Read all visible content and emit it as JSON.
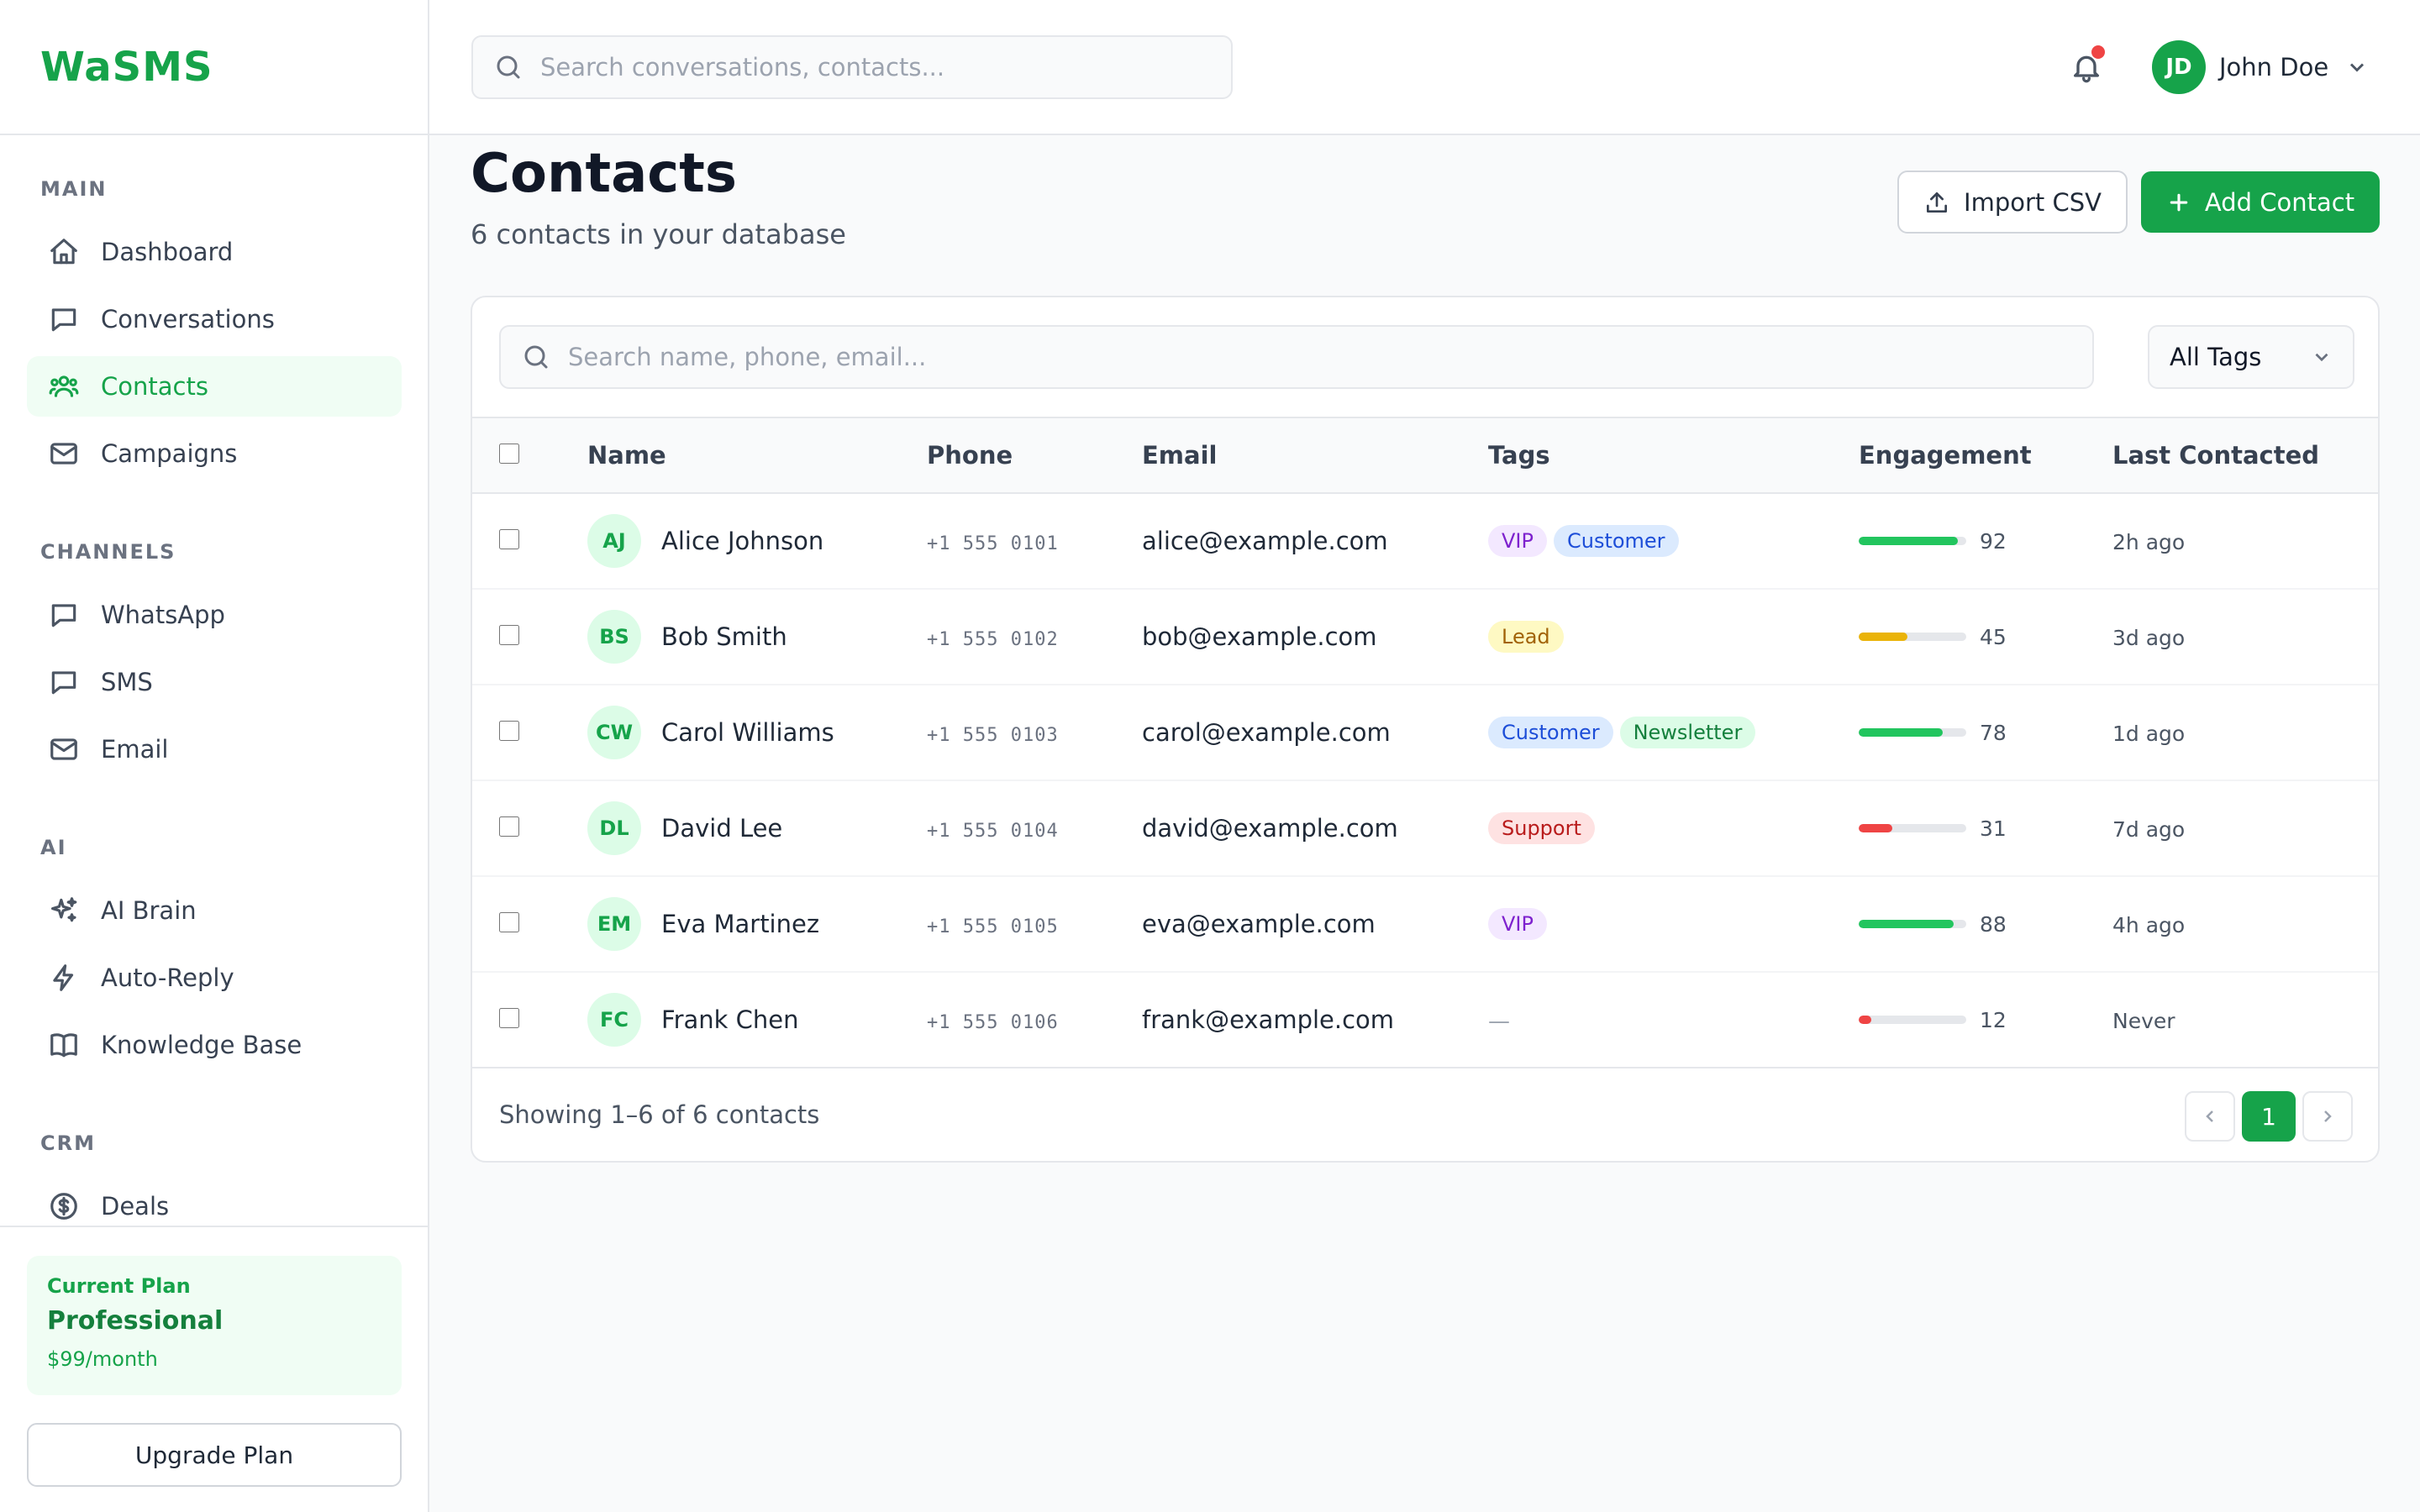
{
  "app": {
    "brand": "WaSMS"
  },
  "header": {
    "search_placeholder": "Search conversations, contacts...",
    "user": {
      "initials": "JD",
      "name": "John Doe"
    }
  },
  "sidebar": {
    "sections": {
      "main": "MAIN",
      "channels": "CHANNELS",
      "ai": "AI",
      "crm": "CRM"
    },
    "items": {
      "dashboard": "Dashboard",
      "conversations": "Conversations",
      "contacts": "Contacts",
      "campaigns": "Campaigns",
      "whatsapp": "WhatsApp",
      "sms": "SMS",
      "email": "Email",
      "ai_brain": "AI Brain",
      "auto_reply": "Auto-Reply",
      "knowledge_base": "Knowledge Base",
      "deals": "Deals"
    },
    "active": "contacts",
    "plan": {
      "label": "Current Plan",
      "name": "Professional",
      "price": "$99/month",
      "upgrade_label": "Upgrade Plan"
    }
  },
  "page": {
    "title": "Contacts",
    "subtitle": "6 contacts in your database",
    "import_label": "Import CSV",
    "add_label": "Add Contact"
  },
  "table": {
    "search_placeholder": "Search name, phone, email...",
    "tag_filter": "All Tags",
    "columns": {
      "name": "Name",
      "phone": "Phone",
      "email": "Email",
      "tags": "Tags",
      "engagement": "Engagement",
      "last_contacted": "Last Contacted"
    },
    "empty_tag": "—",
    "rows": [
      {
        "initials": "AJ",
        "name": "Alice Johnson",
        "phone": "+1 555 0101",
        "email": "alice@example.com",
        "tags": [
          "VIP",
          "Customer"
        ],
        "engagement": 92,
        "last": "2h ago"
      },
      {
        "initials": "BS",
        "name": "Bob Smith",
        "phone": "+1 555 0102",
        "email": "bob@example.com",
        "tags": [
          "Lead"
        ],
        "engagement": 45,
        "last": "3d ago"
      },
      {
        "initials": "CW",
        "name": "Carol Williams",
        "phone": "+1 555 0103",
        "email": "carol@example.com",
        "tags": [
          "Customer",
          "Newsletter"
        ],
        "engagement": 78,
        "last": "1d ago"
      },
      {
        "initials": "DL",
        "name": "David Lee",
        "phone": "+1 555 0104",
        "email": "david@example.com",
        "tags": [
          "Support"
        ],
        "engagement": 31,
        "last": "7d ago"
      },
      {
        "initials": "EM",
        "name": "Eva Martinez",
        "phone": "+1 555 0105",
        "email": "eva@example.com",
        "tags": [
          "VIP"
        ],
        "engagement": 88,
        "last": "4h ago"
      },
      {
        "initials": "FC",
        "name": "Frank Chen",
        "phone": "+1 555 0106",
        "email": "frank@example.com",
        "tags": [],
        "engagement": 12,
        "last": "Never"
      }
    ],
    "tag_colors": {
      "VIP": {
        "bg": "#f3e8ff",
        "fg": "#7e22ce"
      },
      "Customer": {
        "bg": "#dbeafe",
        "fg": "#1d4ed8"
      },
      "Lead": {
        "bg": "#fef9c3",
        "fg": "#a16207"
      },
      "Newsletter": {
        "bg": "#dcfce7",
        "fg": "#15803d"
      },
      "Support": {
        "bg": "#fee2e2",
        "fg": "#b91c1c"
      }
    },
    "engagement_colors": {
      "high": "#22c55e",
      "medium": "#eab308",
      "low": "#ef4444"
    },
    "footer": {
      "showing": "Showing 1–6 of 6 contacts",
      "current_page": "1"
    }
  },
  "colors": {
    "accent": "#16a34a",
    "notification_dot": "#ef4444"
  }
}
